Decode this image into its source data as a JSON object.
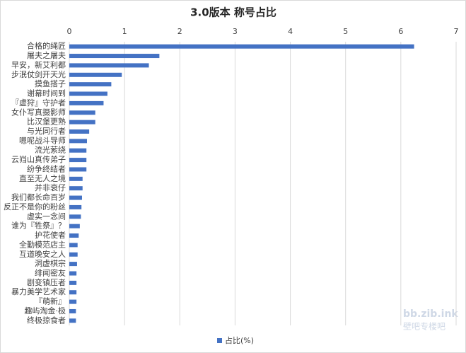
{
  "chart_data": {
    "type": "bar",
    "orientation": "horizontal",
    "title": "3.0版本 称号占比",
    "categories": [
      "合格的绳匠",
      "屠夫之屠夫",
      "早安，新艾利都",
      "步泯仗剑开天光",
      "摸鱼搭子",
      "谢幕时间到",
      "『虚狩』守护者",
      "女仆写真摄影师",
      "比汉堡更熟",
      "与光同行者",
      "嗯呢战斗导师",
      "流光萦绕",
      "云岿山真传弟子",
      "纷争终结者",
      "直至无人之境",
      "并非衰仔",
      "我们都长命百岁",
      "反正不是你的粉丝",
      "虚实一念间",
      "谁为『牲祭』？",
      "护花使者",
      "全勤模范店主",
      "互道晚安之人",
      "洞虚棋宗",
      "绯闻密友",
      "剧变镇压者",
      "暴力美学艺术家",
      "『萌新』",
      "趣屿淘金·极",
      "终极掠食者"
    ],
    "series": [
      {
        "name": "占比(%)",
        "color": "#4472c4",
        "values": [
          6.24,
          1.63,
          1.44,
          0.95,
          0.76,
          0.69,
          0.62,
          0.47,
          0.47,
          0.36,
          0.32,
          0.31,
          0.31,
          0.31,
          0.24,
          0.24,
          0.23,
          0.22,
          0.21,
          0.19,
          0.17,
          0.15,
          0.15,
          0.14,
          0.13,
          0.13,
          0.13,
          0.13,
          0.12,
          0.12
        ]
      }
    ],
    "xlim": [
      0,
      7
    ],
    "xticks": [
      0,
      1,
      2,
      3,
      4,
      5,
      6,
      7
    ],
    "grid": true,
    "legend": "bottom",
    "watermark": [
      "bb.zib.ink",
      "壁吧专楼吧"
    ]
  }
}
